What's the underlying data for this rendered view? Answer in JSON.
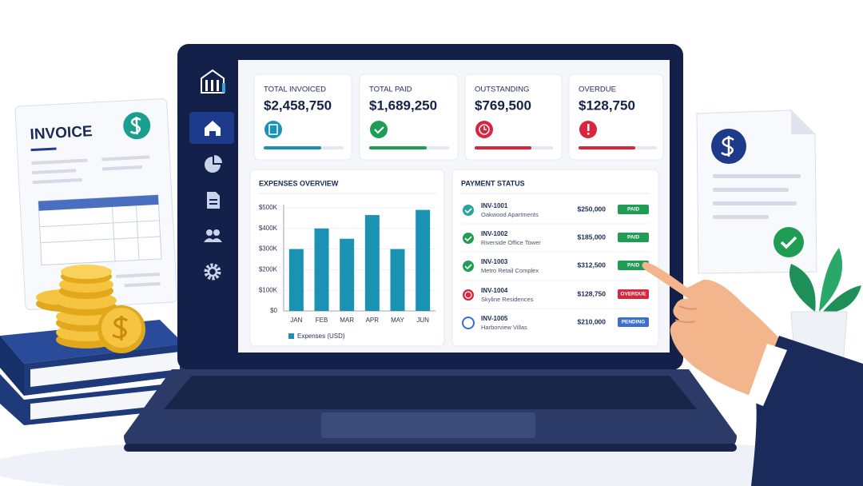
{
  "invoice_doc": {
    "title": "INVOICE"
  },
  "cards": [
    {
      "label": "TOTAL INVOICED",
      "value": "$2,458,750"
    },
    {
      "label": "TOTAL PAID",
      "value": "$1,689,250"
    },
    {
      "label": "OUTSTANDING",
      "value": "$769,500"
    },
    {
      "label": "OVERDUE",
      "value": "$128,750"
    }
  ],
  "chart_data": {
    "type": "bar",
    "title": "EXPENSES OVERVIEW",
    "categories": [
      "JAN",
      "FEB",
      "MAR",
      "APR",
      "MAY",
      "JUN"
    ],
    "series": [
      {
        "name": "Expenses (USD)",
        "color": "#1a93b3",
        "values": [
          300000,
          400000,
          350000,
          465000,
          300000,
          490000
        ]
      }
    ],
    "ylim": [
      0,
      500000
    ],
    "yticks": [
      {
        "value": 0,
        "label": "$0"
      },
      {
        "value": 100000,
        "label": "$100K"
      },
      {
        "value": 200000,
        "label": "$200K"
      },
      {
        "value": 300000,
        "label": "$300K"
      },
      {
        "value": 400000,
        "label": "$400K"
      },
      {
        "value": 500000,
        "label": "$500K"
      }
    ],
    "grid": true
  },
  "payment_status": {
    "title": "PAYMENT STATUS",
    "rows": [
      {
        "id": "INV-1001",
        "client": "Oakwood Apartments",
        "amount": "$250,000",
        "status": "PAID"
      },
      {
        "id": "INV-1002",
        "client": "Riverside Office Tower",
        "amount": "$185,000",
        "status": "PAID"
      },
      {
        "id": "INV-1003",
        "client": "Metro Retail Complex",
        "amount": "$312,500",
        "status": "PAID"
      },
      {
        "id": "INV-1004",
        "client": "Skyline Residences",
        "amount": "$128,750",
        "status": "OVERDUE"
      },
      {
        "id": "INV-1005",
        "client": "Harborview Villas",
        "amount": "$210,000",
        "status": "PENDING"
      }
    ]
  }
}
